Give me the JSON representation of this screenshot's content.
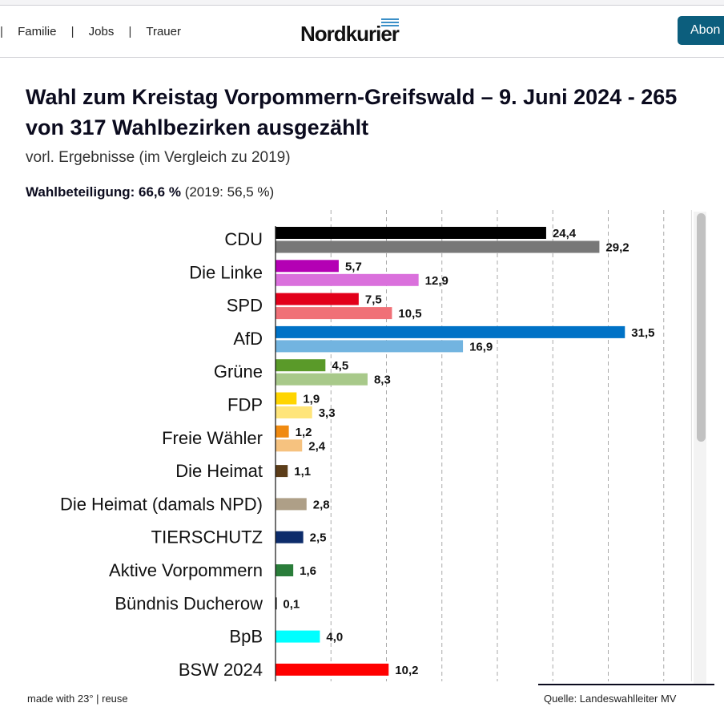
{
  "nav": {
    "links": [
      "Familie",
      "Jobs",
      "Trauer"
    ],
    "logo": "Nordkurier",
    "abo_label": "Abon"
  },
  "chart_data": {
    "type": "bar",
    "orientation": "horizontal",
    "title": "Wahl zum Kreistag Vorpommern-Greifswald – 9. Juni 2024 - 265 von 317 Wahlbezirken ausgezählt",
    "subtitle": "vorl. Ergebnisse (im Vergleich zu 2019)",
    "turnout_label": "Wahlbeteiligung: 66,6 %",
    "turnout_prev": "(2019: 56,5 %)",
    "xlim": [
      0,
      37.5
    ],
    "grid": true,
    "grid_step": 5,
    "categories": [
      "CDU",
      "Die Linke",
      "SPD",
      "AfD",
      "Grüne",
      "FDP",
      "Freie Wähler",
      "Die Heimat",
      "Die Heimat (damals NPD)",
      "TIERSCHUTZ",
      "Aktive Vorpommern",
      "Bündnis Ducherow",
      "BpB",
      "BSW 2024"
    ],
    "series": [
      {
        "values": [
          24.4,
          5.7,
          7.5,
          31.5,
          4.5,
          1.9,
          1.2,
          1.1,
          null,
          2.5,
          1.6,
          0.1,
          4.0,
          10.2
        ],
        "labels": [
          "24,4",
          "5,7",
          "7,5",
          "31,5",
          "4,5",
          "1,9",
          "1,2",
          "1,1",
          null,
          "2,5",
          "1,6",
          "0,1",
          "4,0",
          "10,2"
        ],
        "colors": [
          "#000000",
          "#b400b4",
          "#e2001a",
          "#0072c6",
          "#5a9a29",
          "#ffd500",
          "#f08a10",
          "#5c3d19",
          null,
          "#0d2c6b",
          "#2a7d3a",
          "#000000",
          "#00ffff",
          "#ff0000"
        ]
      },
      {
        "values": [
          29.2,
          12.9,
          10.5,
          16.9,
          8.3,
          3.3,
          2.4,
          null,
          2.8,
          null,
          null,
          null,
          null,
          null
        ],
        "labels": [
          "29,2",
          "12,9",
          "10,5",
          "16,9",
          "8,3",
          "3,3",
          "2,4",
          null,
          "2,8",
          null,
          null,
          null,
          null,
          null
        ],
        "colors": [
          "#787878",
          "#da70dc",
          "#f07077",
          "#72b4e0",
          "#a8c98a",
          "#ffe57a",
          "#f6c27f",
          null,
          "#ae9f87",
          null,
          null,
          null,
          null,
          null
        ]
      }
    ]
  },
  "footer": {
    "made_with": "made with 23° | reuse",
    "source": "Quelle: Landeswahlleiter MV"
  }
}
